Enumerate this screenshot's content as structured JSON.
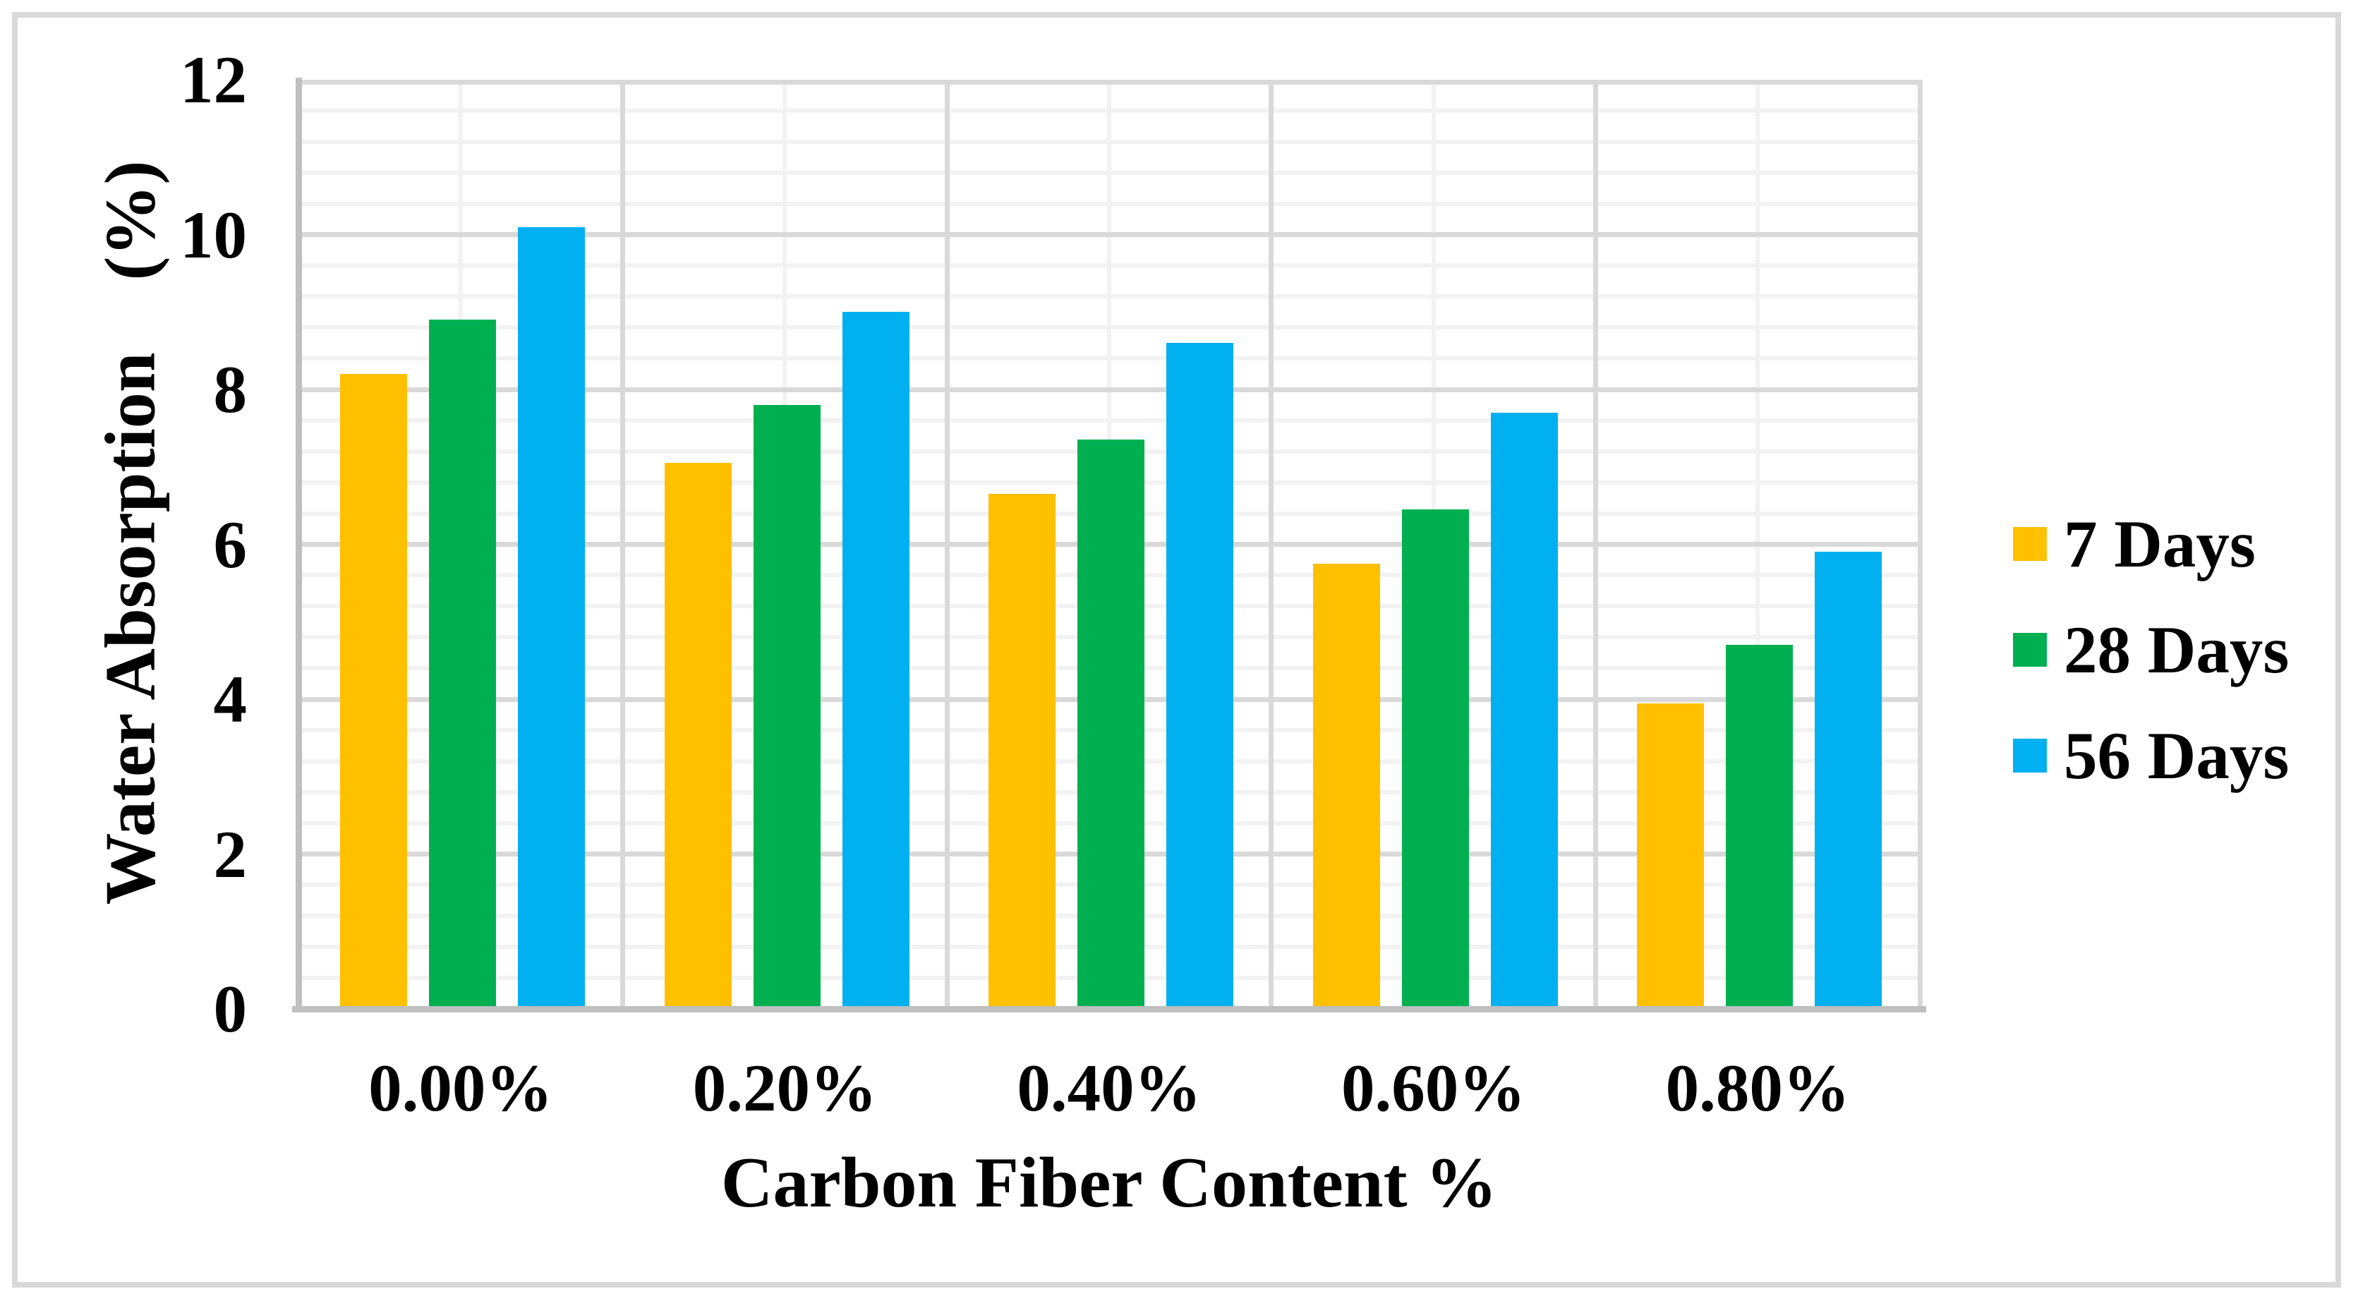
{
  "chart_data": {
    "type": "bar",
    "title": "",
    "categories": [
      "0.00%",
      "0.20%",
      "0.40%",
      "0.60%",
      "0.80%"
    ],
    "series": [
      {
        "name": "7 Days",
        "color": "#FFC000",
        "values": [
          8.2,
          7.05,
          6.65,
          5.75,
          3.95
        ]
      },
      {
        "name": "28 Days",
        "color": "#00B050",
        "values": [
          8.9,
          7.8,
          7.35,
          6.45,
          4.7
        ]
      },
      {
        "name": "56 Days",
        "color": "#00B0F0",
        "values": [
          10.1,
          9.0,
          8.6,
          7.7,
          5.9
        ]
      }
    ],
    "xlabel": "Carbon Fiber Content %",
    "ylabel": "Water Absorption    (%)",
    "ylim": [
      0,
      12
    ],
    "y_ticks": [
      "0",
      "2",
      "4",
      "6",
      "8",
      "10",
      "12"
    ],
    "y_major_step": 2,
    "y_minor_step": 0.4,
    "x_grid_minor": "category-midpoints",
    "grid": "on",
    "legend_position": "right"
  },
  "colors": {
    "series_7_days": "#FFC000",
    "series_28_days": "#00B050",
    "series_56_days": "#00B0F0",
    "gridline_minor": "#F2F2F2",
    "gridline_major": "#D9D9D9",
    "axis_line": "#BFBFBF",
    "chart_border": "#D9D9D9",
    "background": "#FFFFFF",
    "text": "#000000"
  }
}
